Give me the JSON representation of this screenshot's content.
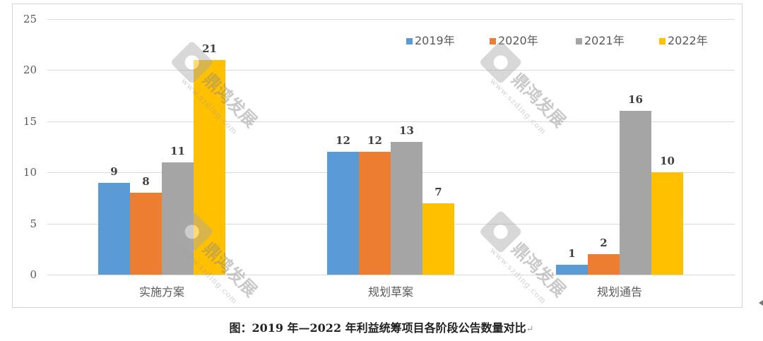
{
  "chart_data": {
    "type": "bar",
    "title": "",
    "caption": "图：2019 年—2022 年利益统筹项目各阶段公告数量对比",
    "xlabel": "",
    "ylabel": "",
    "ylim": [
      0,
      25
    ],
    "yticks": [
      "0",
      "5",
      "10",
      "15",
      "20",
      "25"
    ],
    "grid": true,
    "legend_position": "top-right",
    "categories": [
      "实施方案",
      "规划草案",
      "规划通告"
    ],
    "series": [
      {
        "name": "2019年",
        "color": "#5b9bd5",
        "values": [
          9,
          12,
          1
        ]
      },
      {
        "name": "2020年",
        "color": "#ed7d31",
        "values": [
          8,
          12,
          2
        ]
      },
      {
        "name": "2021年",
        "color": "#a5a5a5",
        "values": [
          11,
          13,
          16
        ]
      },
      {
        "name": "2022年",
        "color": "#ffc000",
        "values": [
          21,
          7,
          10
        ]
      }
    ],
    "data_labels": true
  },
  "legend": {
    "items": [
      {
        "label": "2019年",
        "color": "#5b9bd5"
      },
      {
        "label": "2020年",
        "color": "#ed7d31"
      },
      {
        "label": "2021年",
        "color": "#a5a5a5"
      },
      {
        "label": "2022年",
        "color": "#ffc000"
      }
    ]
  },
  "caption": {
    "text": "图：2019 年—2022 年利益统筹项目各阶段公告数量对比",
    "paragraph_mark": "↵"
  },
  "watermark": {
    "text": "鼎鸿发展",
    "url": "www.szding.com"
  }
}
